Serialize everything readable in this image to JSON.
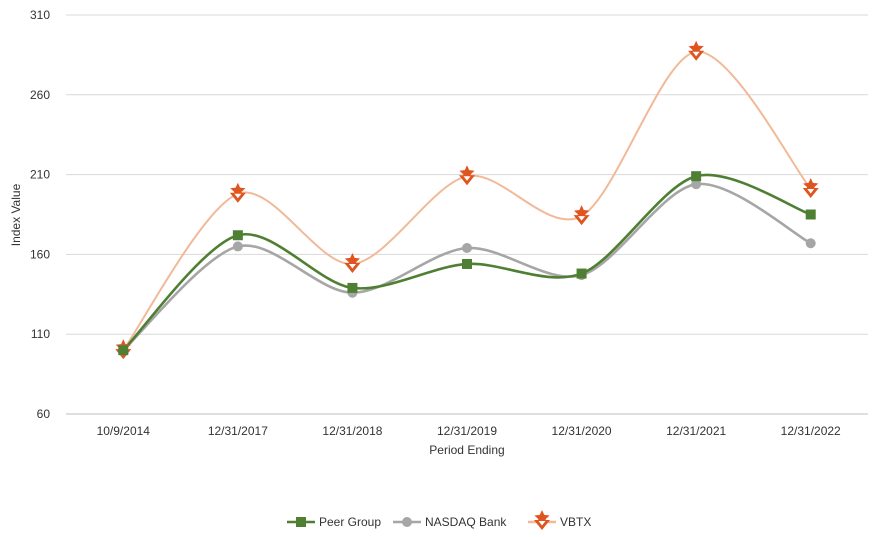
{
  "chart_data": {
    "type": "line",
    "title": "",
    "xlabel": "Period Ending",
    "ylabel": "Index Value",
    "categories": [
      "10/9/2014",
      "12/31/2017",
      "12/31/2018",
      "12/31/2019",
      "12/31/2020",
      "12/31/2021",
      "12/31/2022"
    ],
    "ylim": [
      60,
      310
    ],
    "yticks": [
      60,
      110,
      160,
      210,
      260,
      310
    ],
    "grid": true,
    "legend_position": "bottom",
    "series": [
      {
        "name": "Peer Group",
        "values": [
          100,
          172,
          139,
          154,
          148,
          209,
          185
        ],
        "color": "#4f7f33",
        "marker": "square"
      },
      {
        "name": "NASDAQ Bank",
        "values": [
          100,
          165,
          136,
          164,
          147,
          204,
          167
        ],
        "color": "#a6a6a6",
        "marker": "circle"
      },
      {
        "name": "VBTX",
        "values": [
          100,
          198,
          154,
          209,
          184,
          287,
          201
        ],
        "color": "#f2b999",
        "marker": "star",
        "marker_color": "#e0541f"
      }
    ]
  }
}
